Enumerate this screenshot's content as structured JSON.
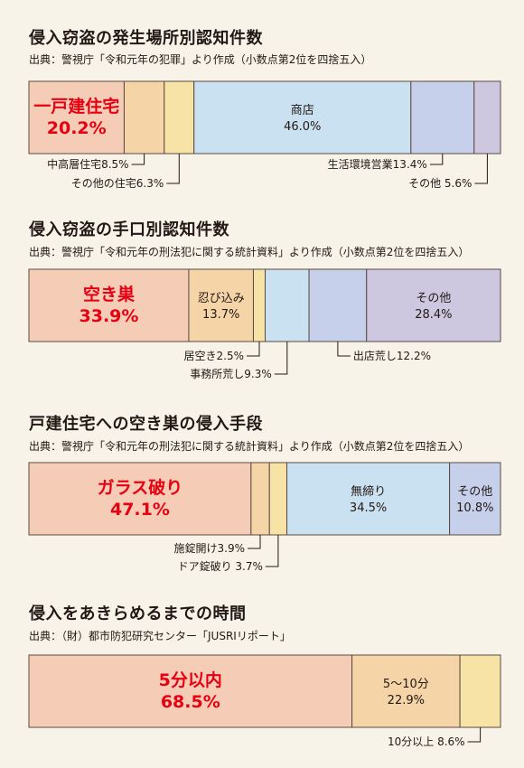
{
  "colors": {
    "background": "#f7f3e8",
    "border": "#5a4a42",
    "highlight_text": "#e60012",
    "segment_palette": [
      "#f5cdb6",
      "#f5d4a8",
      "#f7e3a6",
      "#c9e1f0",
      "#c6d0eb",
      "#cdc8e0"
    ]
  },
  "chart_data": [
    {
      "type": "bar",
      "orientation": "stacked-horizontal",
      "title": "侵入窃盗の発生場所別認知件数",
      "source": "出典：警視庁「令和元年の犯罪」より作成（小数点第2位を四捨五入）",
      "unit": "%",
      "categories": [
        "一戸建住宅",
        "中高層住宅",
        "その他の住宅",
        "商店",
        "生活環境営業",
        "その他"
      ],
      "values": [
        20.2,
        8.5,
        6.3,
        46.0,
        13.4,
        5.6
      ],
      "colors": [
        "#f5cdb6",
        "#f5d4a8",
        "#f7e3a6",
        "#c9e1f0",
        "#c6d0eb",
        "#cdc8e0"
      ],
      "inside_labels": [
        {
          "index": 0,
          "name": "一戸建住宅",
          "value": "20.2%",
          "highlight": true
        },
        {
          "index": 3,
          "name": "商店",
          "value": "46.0%",
          "highlight": false
        }
      ],
      "callouts": [
        {
          "index": 1,
          "text": "中高層住宅8.5%",
          "side": "left",
          "row": 0
        },
        {
          "index": 2,
          "text": "その他の住宅6.3%",
          "side": "left",
          "row": 1
        },
        {
          "index": 4,
          "text": "生活環境営業13.4%",
          "side": "left",
          "row": 0
        },
        {
          "index": 5,
          "text": "その他 5.6%",
          "side": "left",
          "row": 1
        }
      ]
    },
    {
      "type": "bar",
      "orientation": "stacked-horizontal",
      "title": "侵入窃盗の手口別認知件数",
      "source": "出典：警視庁「令和元年の刑法犯に関する統計資料」より作成（小数点第2位を四捨五入）",
      "unit": "%",
      "categories": [
        "空き巣",
        "忍び込み",
        "居空き",
        "事務所荒し",
        "出店荒し",
        "その他"
      ],
      "values": [
        33.9,
        13.7,
        2.5,
        9.3,
        12.2,
        28.4
      ],
      "colors": [
        "#f5cdb6",
        "#f5d4a8",
        "#f7e3a6",
        "#c9e1f0",
        "#c6d0eb",
        "#cdc8e0"
      ],
      "inside_labels": [
        {
          "index": 0,
          "name": "空き巣",
          "value": "33.9%",
          "highlight": true
        },
        {
          "index": 1,
          "name": "忍び込み",
          "value": "13.7%",
          "highlight": false
        },
        {
          "index": 5,
          "name": "その他",
          "value": "28.4%",
          "highlight": false
        }
      ],
      "callouts": [
        {
          "index": 2,
          "text": "居空き2.5%",
          "side": "left",
          "row": 0
        },
        {
          "index": 3,
          "text": "事務所荒し9.3%",
          "side": "left",
          "row": 1
        },
        {
          "index": 4,
          "text": "出店荒し12.2%",
          "side": "right",
          "row": 0
        }
      ]
    },
    {
      "type": "bar",
      "orientation": "stacked-horizontal",
      "title": "戸建住宅への空き巣の侵入手段",
      "source": "出典：警視庁「令和元年の刑法犯に関する統計資料」より作成（小数点第2位を四捨五入）",
      "unit": "%",
      "categories": [
        "ガラス破り",
        "施錠開け",
        "ドア錠破り",
        "無締り",
        "その他"
      ],
      "values": [
        47.1,
        3.9,
        3.7,
        34.5,
        10.8
      ],
      "colors": [
        "#f5cdb6",
        "#f5d4a8",
        "#f7e3a6",
        "#c9e1f0",
        "#c6d0eb"
      ],
      "inside_labels": [
        {
          "index": 0,
          "name": "ガラス破り",
          "value": "47.1%",
          "highlight": true
        },
        {
          "index": 3,
          "name": "無締り",
          "value": "34.5%",
          "highlight": false
        },
        {
          "index": 4,
          "name": "その他",
          "value": "10.8%",
          "highlight": false
        }
      ],
      "callouts": [
        {
          "index": 1,
          "text": "施錠開け3.9%",
          "side": "left",
          "row": 0
        },
        {
          "index": 2,
          "text": "ドア錠破り 3.7%",
          "side": "left",
          "row": 1
        }
      ]
    },
    {
      "type": "bar",
      "orientation": "stacked-horizontal",
      "title": "侵入をあきらめるまでの時間",
      "source": "出典：（財）都市防犯研究センター「JUSRIリポート」",
      "unit": "%",
      "categories": [
        "5分以内",
        "5〜10分",
        "10分以上"
      ],
      "values": [
        68.5,
        22.9,
        8.6
      ],
      "colors": [
        "#f5cdb6",
        "#f5d4a8",
        "#f7e3a6"
      ],
      "inside_labels": [
        {
          "index": 0,
          "name": "5分以内",
          "value": "68.5%",
          "highlight": true
        },
        {
          "index": 1,
          "name": "5〜10分",
          "value": "22.9%",
          "highlight": false
        }
      ],
      "callouts": [
        {
          "index": 2,
          "text": "10分以上  8.6%",
          "side": "left",
          "row": 0
        }
      ]
    }
  ]
}
